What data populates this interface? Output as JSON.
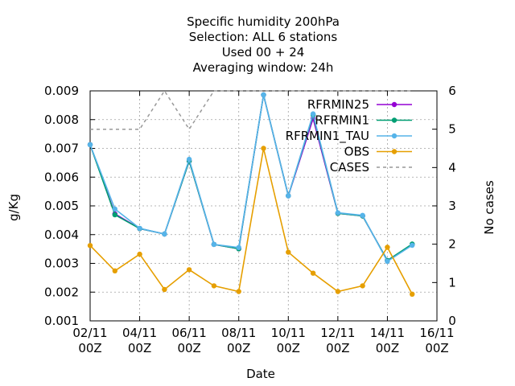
{
  "chart_data": {
    "type": "line",
    "title_lines": [
      "Specific humidity 200hPa",
      "Selection: ALL      6 stations",
      "Used  00 + 24",
      "Averaging window: 24h"
    ],
    "xlabel": "Date",
    "ylabel": "g/Kg",
    "y2label": "No cases",
    "x_ticks": [
      {
        "day": 2,
        "label": [
          "02/11",
          "00Z"
        ]
      },
      {
        "day": 4,
        "label": [
          "04/11",
          "00Z"
        ]
      },
      {
        "day": 6,
        "label": [
          "06/11",
          "00Z"
        ]
      },
      {
        "day": 8,
        "label": [
          "08/11",
          "00Z"
        ]
      },
      {
        "day": 10,
        "label": [
          "10/11",
          "00Z"
        ]
      },
      {
        "day": 12,
        "label": [
          "12/11",
          "00Z"
        ]
      },
      {
        "day": 14,
        "label": [
          "14/11",
          "00Z"
        ]
      },
      {
        "day": 16,
        "label": [
          "16/11",
          "00Z"
        ]
      }
    ],
    "xlim": [
      2,
      16
    ],
    "ylim": [
      0.001,
      0.009
    ],
    "y_ticks": [
      "0.001",
      "0.002",
      "0.003",
      "0.004",
      "0.005",
      "0.006",
      "0.007",
      "0.008",
      "0.009"
    ],
    "y2lim": [
      0,
      6
    ],
    "y2_ticks": [
      "0",
      "1",
      "2",
      "3",
      "4",
      "5",
      "6"
    ],
    "grid": true,
    "legend_position": "top-right",
    "x": [
      2,
      3,
      4,
      5,
      6,
      7,
      8,
      9,
      10,
      11,
      12,
      13,
      14,
      15
    ],
    "series": [
      {
        "name": "RFRMIN25",
        "color": "#9400d3",
        "marker": "plus",
        "axis": "y1",
        "values": [
          0.00713,
          0.00472,
          0.00421,
          0.00402,
          0.00656,
          0.00366,
          0.00351,
          0.00886,
          0.00535,
          0.00804,
          0.00474,
          0.00465,
          0.0031,
          0.00365
        ]
      },
      {
        "name": "RFRMIN1",
        "color": "#009e73",
        "marker": "plus",
        "axis": "y1",
        "values": [
          0.00713,
          0.00469,
          0.00421,
          0.00402,
          0.00656,
          0.00366,
          0.00351,
          0.00886,
          0.00535,
          0.00816,
          0.00474,
          0.00465,
          0.0031,
          0.00367
        ]
      },
      {
        "name": "RFRMIN1_TAU",
        "color": "#56b4e9",
        "marker": "plus",
        "axis": "y1",
        "values": [
          0.00713,
          0.00489,
          0.00422,
          0.00402,
          0.00662,
          0.00366,
          0.00355,
          0.00886,
          0.00535,
          0.0082,
          0.00476,
          0.00467,
          0.00307,
          0.00363
        ]
      },
      {
        "name": "OBS",
        "color": "#e69f00",
        "marker": "plus",
        "axis": "y1",
        "values": [
          0.00362,
          0.00274,
          0.00332,
          0.00209,
          0.00278,
          0.00222,
          0.00202,
          0.007,
          0.00339,
          0.00266,
          0.00202,
          0.00222,
          0.00356,
          0.00193
        ]
      },
      {
        "name": "CASES",
        "color": "#999999",
        "marker": "none",
        "dashed": true,
        "axis": "y2",
        "values": [
          5,
          5,
          5,
          6,
          5,
          6,
          6,
          6,
          6,
          6,
          6,
          6,
          6,
          6
        ]
      }
    ]
  }
}
